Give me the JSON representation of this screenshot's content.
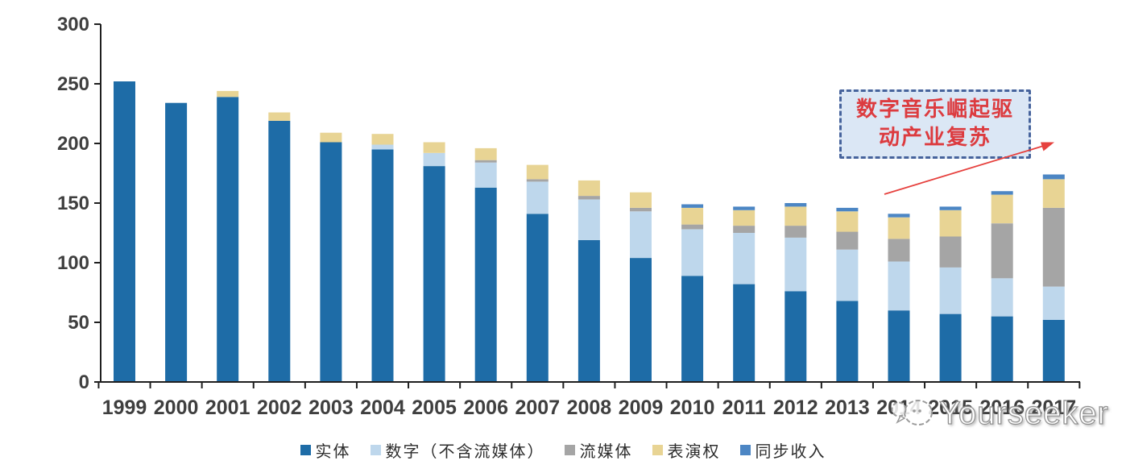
{
  "chart_data": {
    "type": "bar",
    "stacked": true,
    "title": "",
    "xlabel": "",
    "ylabel": "",
    "ylim": [
      0,
      300
    ],
    "yticks": [
      0,
      50,
      100,
      150,
      200,
      250,
      300
    ],
    "grid": false,
    "legend_position": "bottom",
    "categories": [
      "1999",
      "2000",
      "2001",
      "2002",
      "2003",
      "2004",
      "2005",
      "2006",
      "2007",
      "2008",
      "2009",
      "2010",
      "2011",
      "2012",
      "2013",
      "2014",
      "2015",
      "2016",
      "2017"
    ],
    "series": [
      {
        "name": "实体",
        "color": "#1E6CA7",
        "values": [
          252,
          234,
          239,
          219,
          201,
          195,
          181,
          163,
          141,
          119,
          104,
          89,
          82,
          76,
          68,
          60,
          57,
          55,
          52
        ]
      },
      {
        "name": "数字（不含流媒体）",
        "color": "#BED7EC",
        "values": [
          0,
          0,
          0,
          0,
          0,
          4,
          11,
          21,
          27,
          34,
          39,
          39,
          43,
          45,
          43,
          41,
          39,
          32,
          28
        ]
      },
      {
        "name": "流媒体",
        "color": "#A5A5A5",
        "values": [
          0,
          0,
          0,
          0,
          0,
          0,
          0,
          2,
          2,
          3,
          3,
          4,
          6,
          10,
          15,
          19,
          26,
          46,
          66
        ]
      },
      {
        "name": "表演权",
        "color": "#E8D494",
        "values": [
          0,
          0,
          5,
          7,
          8,
          9,
          9,
          10,
          12,
          13,
          13,
          14,
          13,
          16,
          17,
          18,
          22,
          24,
          24
        ]
      },
      {
        "name": "同步收入",
        "color": "#4C86C4",
        "values": [
          0,
          0,
          0,
          0,
          0,
          0,
          0,
          0,
          0,
          0,
          0,
          3,
          3,
          3,
          3,
          3,
          3,
          3,
          4
        ]
      }
    ],
    "annotation": {
      "line1": "数字音乐崛起驱",
      "line2": "动产业复苏",
      "text_color": "#dc3b3f",
      "box_fill": "#dbe7f5",
      "box_border": "#46639c",
      "arrow_color": "#e6413e"
    }
  },
  "axis": {
    "line_color": "#1f1f1f",
    "label_color": "#3f3f3f"
  },
  "watermark": {
    "text": "Yourseeker",
    "logo": "chat-bubbles-icon",
    "text_color": "#ffffff",
    "outline_color": "#919191"
  }
}
